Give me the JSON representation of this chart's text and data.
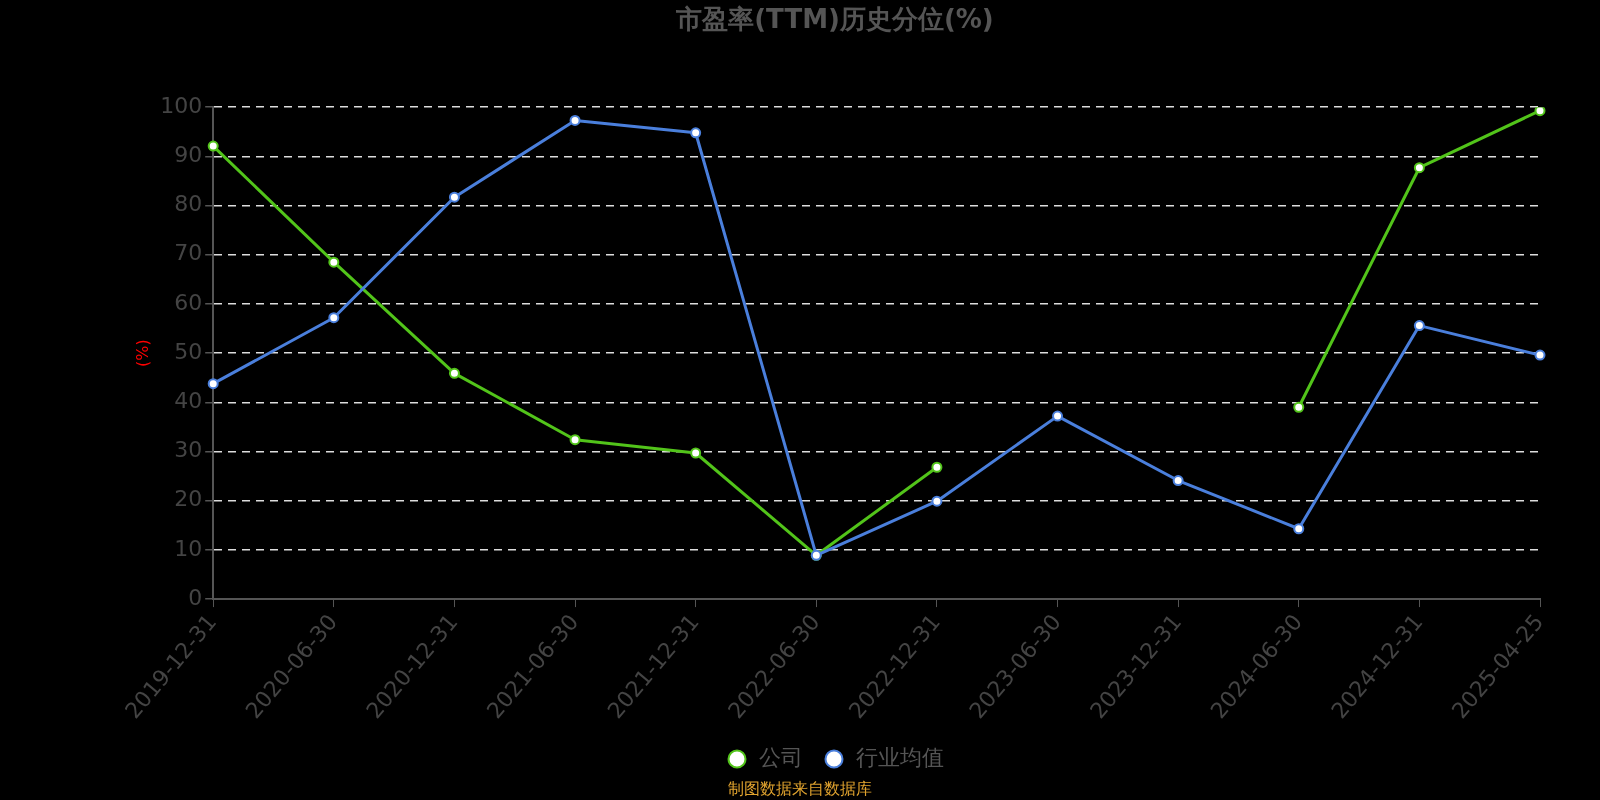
{
  "chart_data": {
    "type": "line",
    "title": "市盈率(TTM)历史分位(%)",
    "ylabel": "(%)",
    "categories": [
      "2019-12-31",
      "2020-06-30",
      "2020-12-31",
      "2021-06-30",
      "2021-12-31",
      "2022-06-30",
      "2022-12-31",
      "2023-06-30",
      "2023-12-31",
      "2024-06-30",
      "2024-12-31",
      "2025-04-25"
    ],
    "series": [
      {
        "name": "公司",
        "color": "#52c41a",
        "values": [
          92.1,
          68.5,
          45.9,
          32.4,
          29.7,
          8.9,
          26.8,
          null,
          null,
          39,
          87.7,
          99.3
        ]
      },
      {
        "name": "行业均值",
        "color": "#4a7fdc",
        "values": [
          43.8,
          57.2,
          81.7,
          97.3,
          94.8,
          8.9,
          19.9,
          37.2,
          24.1,
          14.3,
          55.6,
          49.6
        ]
      }
    ],
    "ylim": [
      0,
      100
    ],
    "yticks": [
      0,
      10,
      20,
      30,
      40,
      50,
      60,
      70,
      80,
      90,
      100
    ],
    "grid": "y",
    "legend": "bottom",
    "marker": "circle",
    "line_style": "solid",
    "annotations": [
      "制图数据来自数据库"
    ]
  }
}
